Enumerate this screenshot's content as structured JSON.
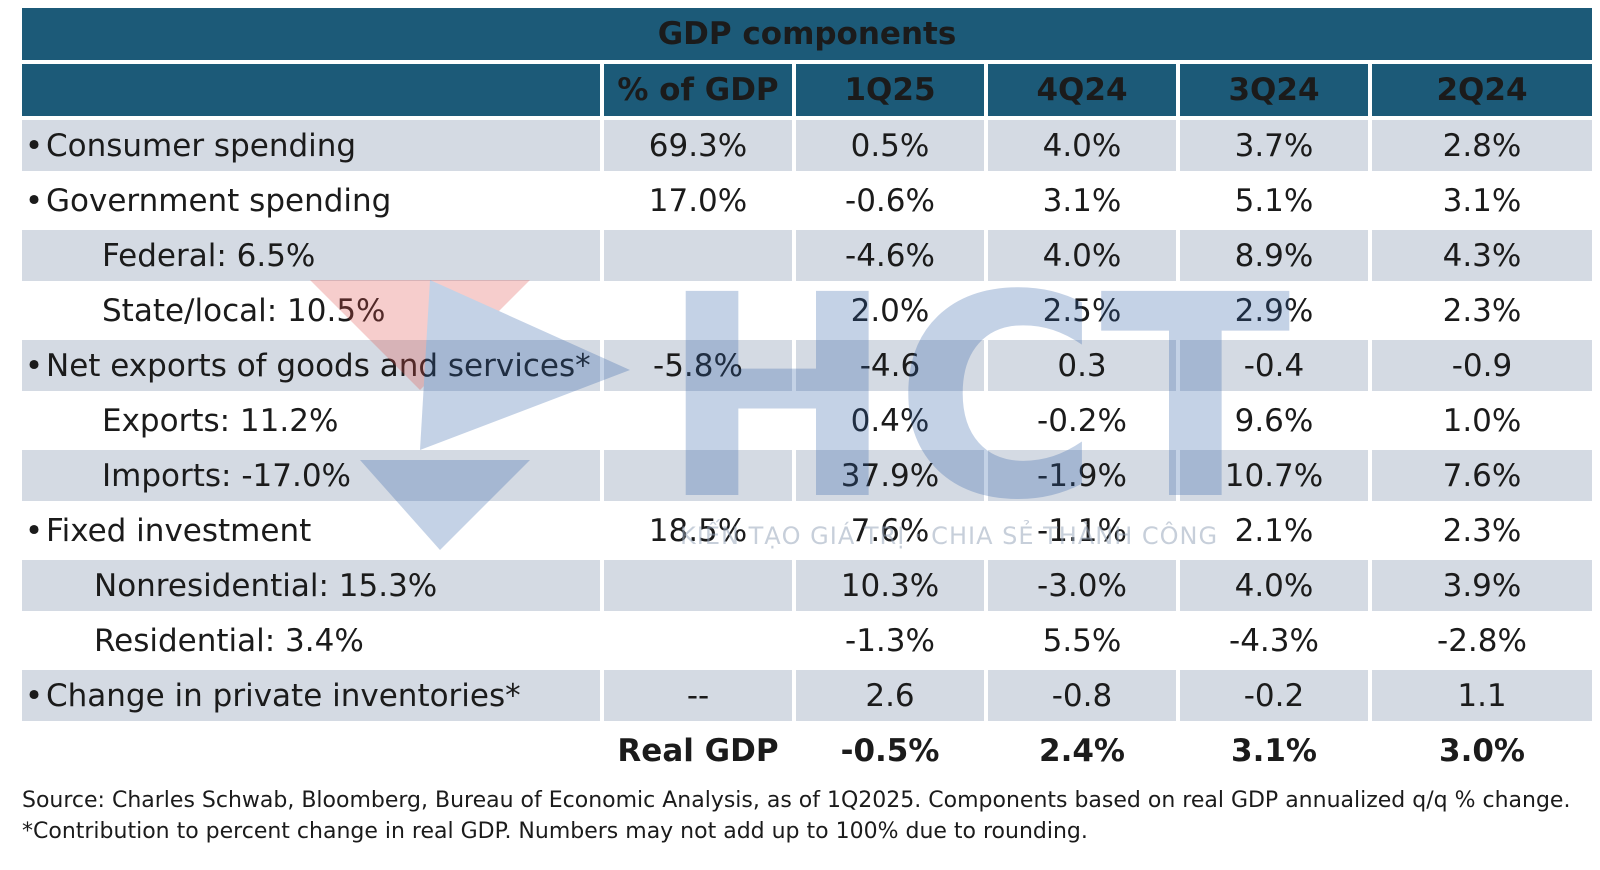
{
  "chart_data": {
    "type": "table",
    "title": "GDP components",
    "columns": [
      "",
      "% of GDP",
      "1Q25",
      "4Q24",
      "3Q24",
      "2Q24"
    ],
    "rows": [
      {
        "label": "Consumer spending",
        "bullet": true,
        "indent": 0,
        "share": "69.3%",
        "values": [
          "0.5%",
          "4.0%",
          "3.7%",
          "2.8%"
        ]
      },
      {
        "label": "Government spending",
        "bullet": true,
        "indent": 0,
        "share": "17.0%",
        "values": [
          "-0.6%",
          "3.1%",
          "5.1%",
          "3.1%"
        ]
      },
      {
        "label": "Federal: 6.5%",
        "bullet": false,
        "indent": 1,
        "share": "",
        "values": [
          "-4.6%",
          "4.0%",
          "8.9%",
          "4.3%"
        ]
      },
      {
        "label": "State/local: 10.5%",
        "bullet": false,
        "indent": 1,
        "share": "",
        "values": [
          "2.0%",
          "2.5%",
          "2.9%",
          "2.3%"
        ]
      },
      {
        "label": "Net exports of goods and services*",
        "bullet": true,
        "indent": 0,
        "share": "-5.8%",
        "values": [
          "-4.6",
          "0.3",
          "-0.4",
          "-0.9"
        ]
      },
      {
        "label": "Exports: 11.2%",
        "bullet": false,
        "indent": 1,
        "share": "",
        "values": [
          "0.4%",
          "-0.2%",
          "9.6%",
          "1.0%"
        ]
      },
      {
        "label": "Imports: -17.0%",
        "bullet": false,
        "indent": 1,
        "share": "",
        "values": [
          "37.9%",
          "-1.9%",
          "10.7%",
          "7.6%"
        ]
      },
      {
        "label": "Fixed investment",
        "bullet": true,
        "indent": 0,
        "share": "18.5%",
        "values": [
          "7.6%",
          "-1.1%",
          "2.1%",
          "2.3%"
        ]
      },
      {
        "label": "Nonresidential: 15.3%",
        "bullet": false,
        "indent": 2,
        "share": "",
        "values": [
          "10.3%",
          "-3.0%",
          "4.0%",
          "3.9%"
        ]
      },
      {
        "label": "Residential: 3.4%",
        "bullet": false,
        "indent": 2,
        "share": "",
        "values": [
          "-1.3%",
          "5.5%",
          "-4.3%",
          "-2.8%"
        ]
      },
      {
        "label": "Change in private inventories*",
        "bullet": true,
        "indent": 0,
        "share": "--",
        "values": [
          "2.6",
          "-0.8",
          "-0.2",
          "1.1"
        ]
      }
    ],
    "total": {
      "label": "Real GDP",
      "values": [
        "-0.5%",
        "2.4%",
        "3.1%",
        "3.0%"
      ]
    },
    "source": "Source: Charles Schwab, Bloomberg, Bureau of Economic Analysis, as of 1Q2025. Components based on real GDP annualized q/q % change. *Contribution to percent change in real GDP. Numbers may not add up to 100% due to rounding."
  },
  "watermark": {
    "logo_text": "HCT",
    "tagline": "KIẾN TẠO GIÁ TRỊ · CHIA SẺ THÀNH CÔNG",
    "colors": {
      "red": "#e0504a",
      "blue": "#2e5fa8"
    }
  },
  "colors": {
    "header_bg": "#1c5a78",
    "row_shade": "#d4dae3",
    "text": "#1b1b1b"
  }
}
